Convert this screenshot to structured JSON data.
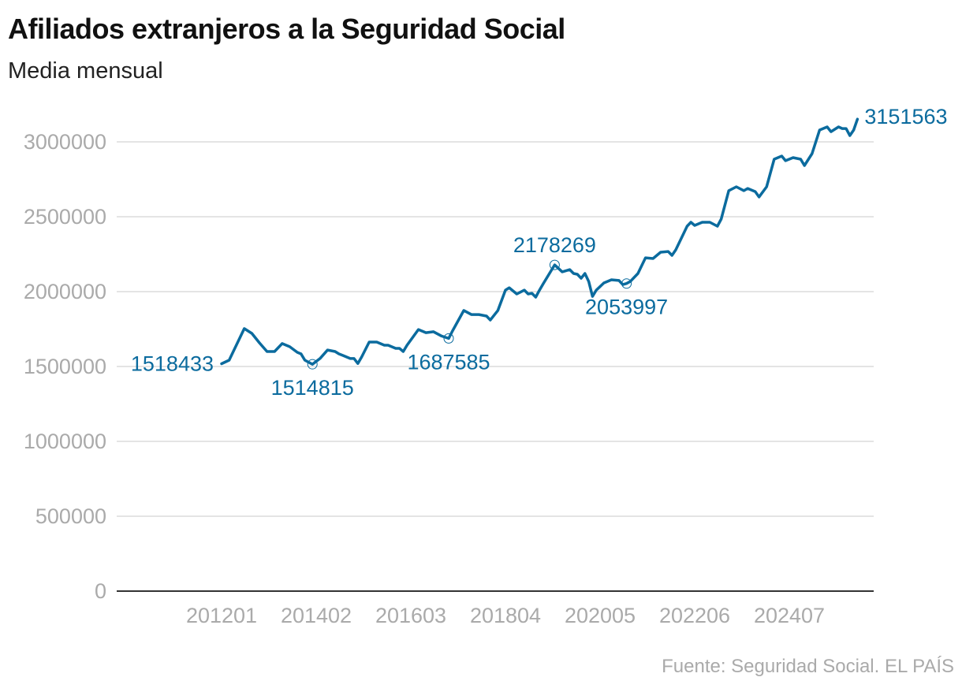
{
  "title": "Afiliados extranjeros a la Seguridad Social",
  "subtitle": "Media mensual",
  "source": "Fuente: Seguridad Social. EL PAÍS",
  "chart_data": {
    "type": "line",
    "title": "Afiliados extranjeros a la Seguridad Social",
    "subtitle": "Media mensual",
    "xlabel": "",
    "ylabel": "",
    "ylim": [
      0,
      3000000
    ],
    "yticks": [
      "0",
      "500000",
      "1000000",
      "1500000",
      "2000000",
      "2500000",
      "3000000"
    ],
    "xticks": [
      "201201",
      "201402",
      "201603",
      "201804",
      "202005",
      "202206",
      "202407"
    ],
    "grid": "horizontal",
    "legend": "none",
    "color": "#0b6b9e",
    "series": [
      {
        "x": [
          "201201",
          "201203",
          "201207",
          "201209",
          "201211",
          "201301",
          "201303",
          "201305",
          "201307",
          "201309",
          "201310",
          "201311",
          "201401",
          "201403",
          "201405",
          "201407",
          "201408",
          "201409",
          "201411",
          "201412",
          "201501",
          "201502",
          "201504",
          "201506",
          "201508",
          "201509",
          "201511",
          "201512",
          "201601",
          "201602",
          "201605",
          "201607",
          "201609",
          "201611",
          "201701",
          "201702",
          "201705",
          "201707",
          "201709",
          "201711",
          "201712",
          "201802",
          "201804",
          "201805",
          "201807",
          "201809",
          "201810",
          "201811",
          "201812",
          "201901",
          "201902",
          "201905",
          "201907",
          "201909",
          "201910",
          "201911",
          "201912",
          "202001",
          "202002",
          "202003",
          "202004",
          "202006",
          "202008",
          "202010",
          "202011",
          "202012",
          "202101",
          "202103",
          "202105",
          "202107",
          "202109",
          "202111",
          "202112",
          "202201",
          "202204",
          "202205",
          "202206",
          "202208",
          "202210",
          "202212",
          "202301",
          "202303",
          "202305",
          "202307",
          "202308",
          "202310",
          "202311",
          "202401",
          "202403",
          "202405",
          "202406",
          "202408",
          "202410",
          "202411",
          "202501",
          "202503",
          "202505",
          "202506",
          "202508",
          "202509",
          "202510",
          "202511",
          "202512",
          "202601"
        ],
        "values": [
          1518433,
          1542000,
          1753000,
          1721000,
          1658000,
          1600000,
          1600000,
          1653000,
          1632000,
          1595000,
          1584000,
          1542000,
          1514815,
          1553000,
          1610000,
          1600000,
          1584000,
          1574000,
          1553000,
          1553000,
          1520000,
          1563000,
          1663000,
          1663000,
          1642000,
          1642000,
          1621000,
          1621000,
          1600000,
          1642000,
          1747000,
          1726000,
          1732000,
          1705000,
          1687585,
          1737000,
          1874000,
          1847000,
          1847000,
          1837000,
          1810000,
          1874000,
          2010000,
          2026000,
          1984000,
          2010000,
          1984000,
          1989000,
          1963000,
          2010000,
          2053000,
          2178269,
          2132000,
          2147000,
          2121000,
          2116000,
          2089000,
          2121000,
          2068000,
          1968000,
          2010000,
          2058000,
          2079000,
          2074000,
          2047000,
          2053997,
          2068000,
          2121000,
          2226000,
          2221000,
          2263000,
          2268000,
          2242000,
          2279000,
          2437000,
          2463000,
          2442000,
          2463000,
          2463000,
          2437000,
          2484000,
          2674000,
          2700000,
          2674000,
          2689000,
          2668000,
          2632000,
          2700000,
          2884000,
          2905000,
          2874000,
          2895000,
          2884000,
          2842000,
          2921000,
          3079000,
          3100000,
          3068000,
          3100000,
          3089000,
          3089000,
          3042000,
          3079000,
          3151563
        ]
      }
    ],
    "annotations": [
      {
        "x": "201201",
        "label": "1518433",
        "marker": false,
        "pos": "left"
      },
      {
        "x": "201401",
        "label": "1514815",
        "marker": true,
        "pos": "below"
      },
      {
        "x": "201701",
        "label": "1687585",
        "marker": true,
        "pos": "below"
      },
      {
        "x": "201905",
        "label": "2178269",
        "marker": true,
        "pos": "above"
      },
      {
        "x": "202012",
        "label": "2053997",
        "marker": true,
        "pos": "below"
      },
      {
        "x": "202601",
        "label": "3151563",
        "marker": false,
        "pos": "right"
      }
    ]
  }
}
